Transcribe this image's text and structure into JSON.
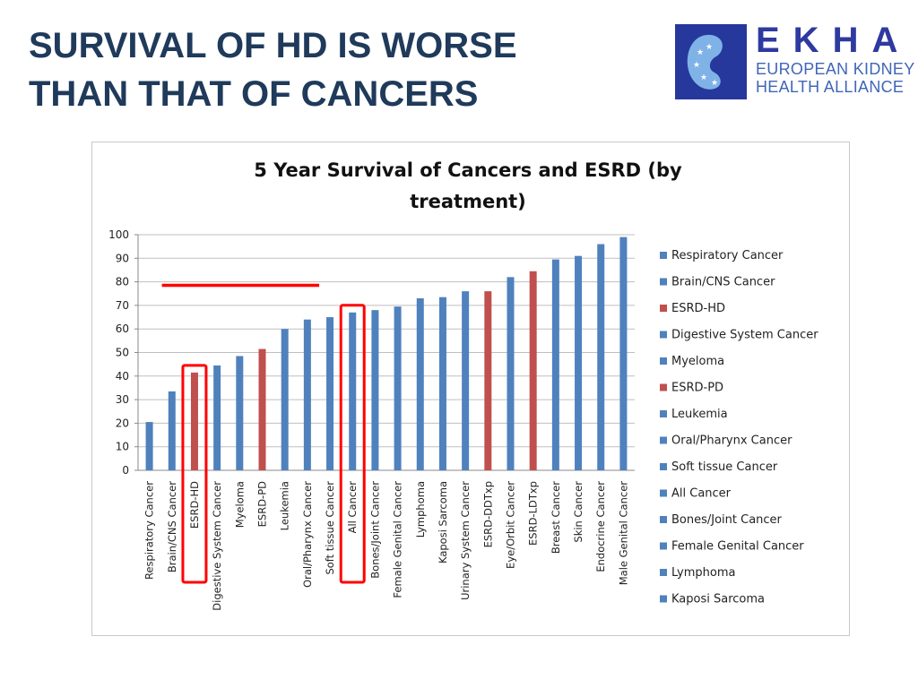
{
  "slide": {
    "title_line1": "SURVIVAL OF HD IS WORSE",
    "title_line2": "THAN THAT OF CANCERS"
  },
  "logo": {
    "name": "EKHA",
    "line1": "EUROPEAN KIDNEY",
    "line2": "HEALTH ALLIANCE",
    "colors": {
      "mark": "#26389c",
      "name": "#2e3aa0",
      "text": "#3f66b8"
    }
  },
  "chart_data": {
    "type": "bar",
    "title_line1": "5 Year Survival of Cancers and ESRD (by",
    "title_line2": "treatment)",
    "categories": [
      "Respiratory Cancer",
      "Brain/CNS Cancer",
      "ESRD-HD",
      "Digestive System Cancer",
      "Myeloma",
      "ESRD-PD",
      "Leukemia",
      "Oral/Pharynx Cancer",
      "Soft tissue Cancer",
      "All Cancer",
      "Bones/Joint Cancer",
      "Female Genital Cancer",
      "Lymphoma",
      "Kaposi Sarcoma",
      "Urinary System Cancer",
      "ESRD-DDTxp",
      "Eye/Orbit Cancer",
      "ESRD-LDTxp",
      "Breast Cancer",
      "Skin Cancer",
      "Endocrine Cancer",
      "Male Genital Cancer"
    ],
    "values": [
      20.5,
      33.5,
      41.5,
      44.5,
      48.5,
      51.5,
      60,
      64,
      65,
      67,
      68,
      69.5,
      73,
      73.5,
      76,
      76,
      82,
      84.5,
      89.5,
      91,
      96,
      99
    ],
    "groups": [
      "cancer",
      "cancer",
      "esrd",
      "cancer",
      "cancer",
      "esrd",
      "cancer",
      "cancer",
      "cancer",
      "cancer",
      "cancer",
      "cancer",
      "cancer",
      "cancer",
      "cancer",
      "esrd",
      "cancer",
      "esrd",
      "cancer",
      "cancer",
      "cancer",
      "cancer"
    ],
    "colors": {
      "cancer": "#4f81bd",
      "esrd": "#c0504d",
      "highlight": "#ff0000"
    },
    "ylim": [
      0,
      100
    ],
    "yticks": [
      0,
      10,
      20,
      30,
      40,
      50,
      60,
      70,
      80,
      90,
      100
    ],
    "legend": {
      "position": "right",
      "entries": [
        {
          "label": "Respiratory Cancer",
          "group": "cancer"
        },
        {
          "label": "Brain/CNS Cancer",
          "group": "cancer"
        },
        {
          "label": "ESRD-HD",
          "group": "esrd"
        },
        {
          "label": "Digestive System Cancer",
          "group": "cancer"
        },
        {
          "label": "Myeloma",
          "group": "cancer"
        },
        {
          "label": "ESRD-PD",
          "group": "esrd"
        },
        {
          "label": "Leukemia",
          "group": "cancer"
        },
        {
          "label": "Oral/Pharynx Cancer",
          "group": "cancer"
        },
        {
          "label": "Soft tissue Cancer",
          "group": "cancer"
        },
        {
          "label": "All Cancer",
          "group": "cancer"
        },
        {
          "label": "Bones/Joint Cancer",
          "group": "cancer"
        },
        {
          "label": "Female Genital Cancer",
          "group": "cancer"
        },
        {
          "label": "Lymphoma",
          "group": "cancer"
        },
        {
          "label": "Kaposi Sarcoma",
          "group": "cancer"
        }
      ]
    },
    "annotations": {
      "highlighted_categories": [
        "ESRD-HD",
        "All Cancer"
      ],
      "reference_line": {
        "value": 78.5,
        "from_category": "Respiratory Cancer",
        "to_category": "Soft tissue Cancer"
      }
    }
  }
}
